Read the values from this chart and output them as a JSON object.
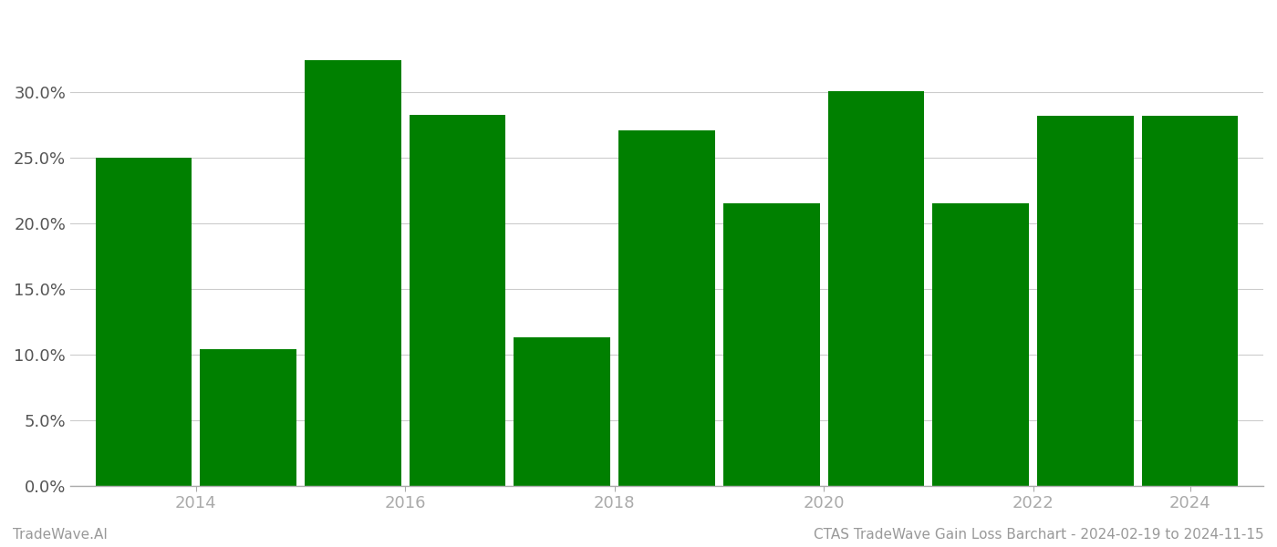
{
  "years": [
    2014,
    2015,
    2016,
    2017,
    2018,
    2019,
    2020,
    2021,
    2022,
    2023,
    2024
  ],
  "values": [
    0.2499,
    0.1038,
    0.3248,
    0.283,
    0.1128,
    0.271,
    0.2152,
    0.3008,
    0.2152,
    0.282,
    0.282
  ],
  "bar_color": "#008000",
  "background_color": "#ffffff",
  "ylim": [
    0,
    0.36
  ],
  "yticks": [
    0.0,
    0.05,
    0.1,
    0.15,
    0.2,
    0.25,
    0.3
  ],
  "grid_color": "#cccccc",
  "footer_left": "TradeWave.AI",
  "footer_right": "CTAS TradeWave Gain Loss Barchart - 2024-02-19 to 2024-11-15",
  "footer_color": "#999999",
  "footer_fontsize": 11,
  "bar_width": 0.92,
  "axis_color": "#aaaaaa",
  "tick_color": "#555555",
  "tick_fontsize": 13,
  "xtick_labels": [
    "2014",
    "2016",
    "2018",
    "2020",
    "2022",
    "2024"
  ],
  "xtick_positions": [
    0.5,
    2.5,
    4.5,
    6.5,
    8.5,
    10.0
  ]
}
